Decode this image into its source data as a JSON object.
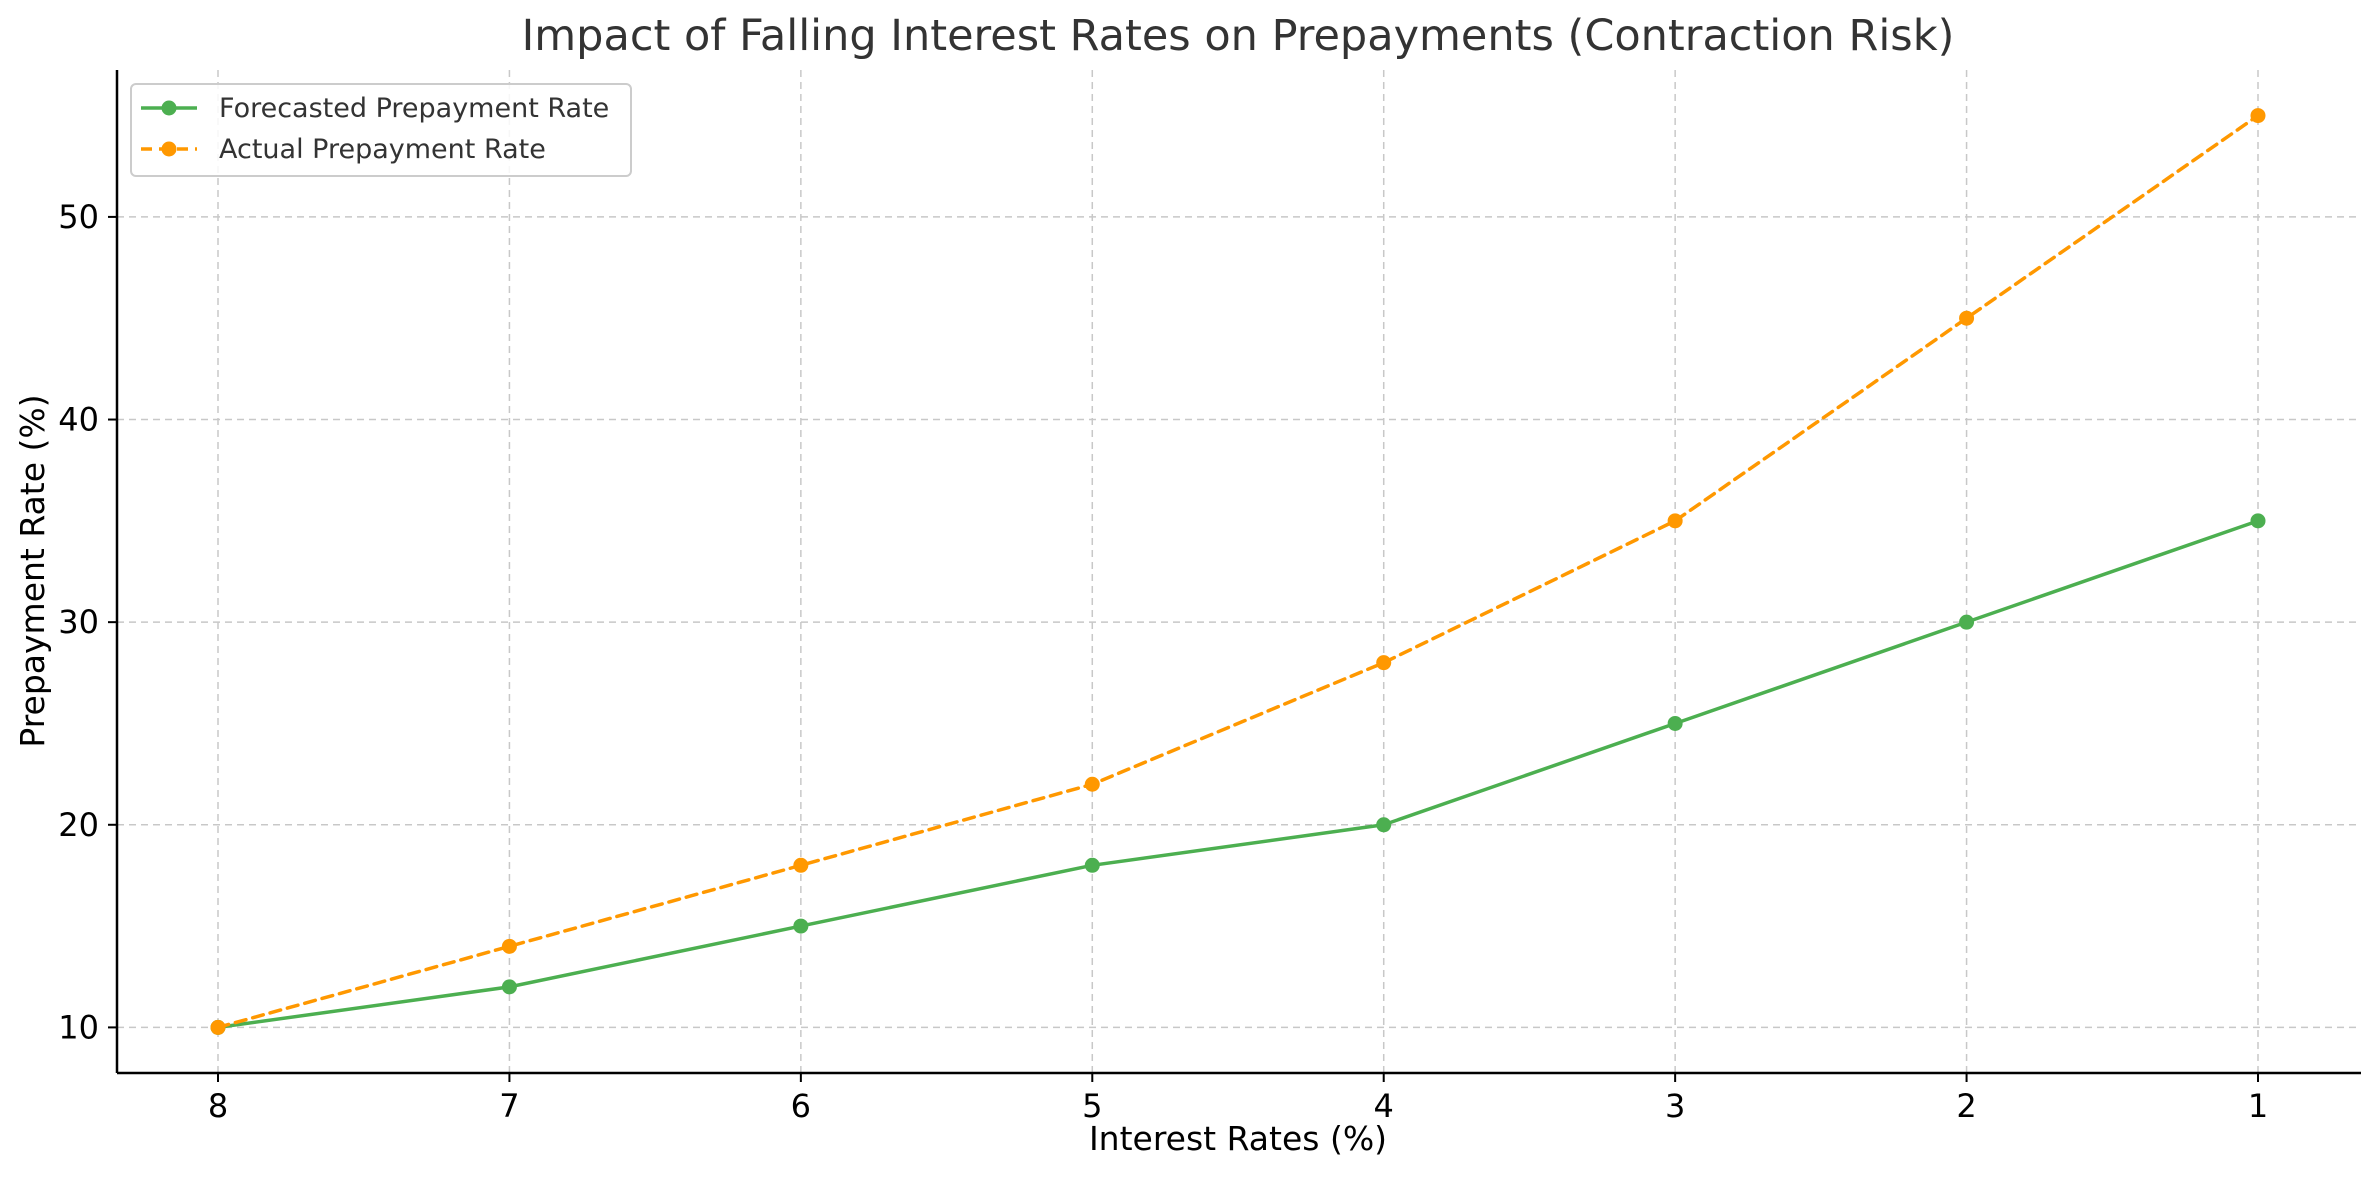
{
  "chart_data": {
    "type": "line",
    "title": "Impact of Falling Interest Rates on Prepayments (Contraction Risk)",
    "xlabel": "Interest Rates (%)",
    "ylabel": "Prepayment Rate (%)",
    "x": [
      8,
      7,
      6,
      5,
      4,
      3,
      2,
      1
    ],
    "x_reversed": true,
    "x_ticks": [
      "8",
      "7",
      "6",
      "5",
      "4",
      "3",
      "2",
      "1"
    ],
    "y_ticks": [
      "10",
      "20",
      "30",
      "40",
      "50"
    ],
    "ylim": [
      7.75,
      57.25
    ],
    "grid": true,
    "legend_position": "top-left",
    "series": [
      {
        "name": "Forecasted Prepayment Rate",
        "values": [
          10,
          12,
          15,
          18,
          20,
          25,
          30,
          35
        ],
        "color": "#4caf50",
        "line_style": "solid",
        "marker": "circle"
      },
      {
        "name": "Actual Prepayment Rate",
        "values": [
          10,
          14,
          18,
          22,
          28,
          35,
          45,
          55
        ],
        "color": "#ff9800",
        "line_style": "dashed",
        "marker": "circle"
      }
    ]
  }
}
